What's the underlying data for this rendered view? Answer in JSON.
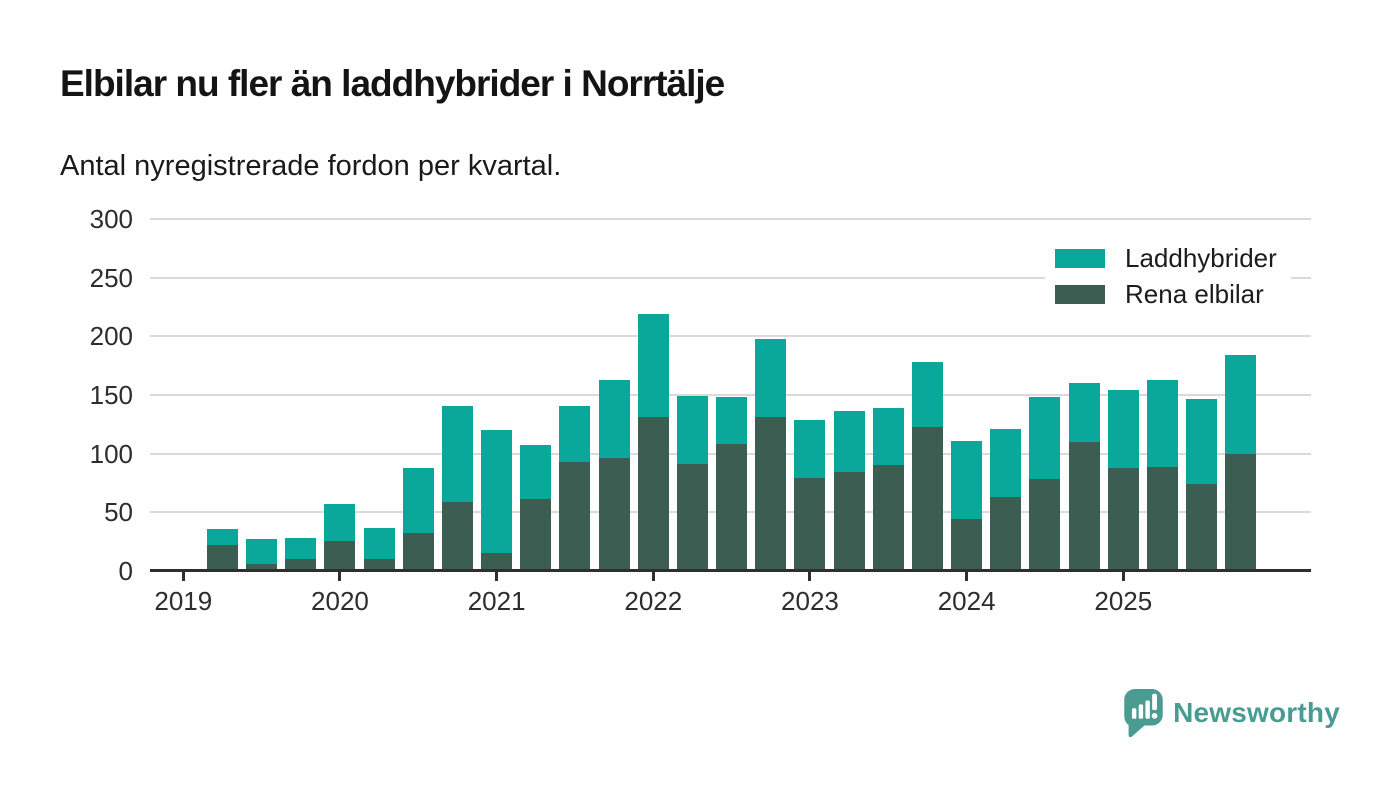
{
  "header": {
    "subtitle": "Antal nyregistrerade fordon per kvartal."
  },
  "chart_data": {
    "type": "bar",
    "stacked": true,
    "title": "Elbilar nu fler än laddhybrider i Norrtälje",
    "xlabel": "",
    "ylabel": "",
    "categories": [
      "2019Q2",
      "2019Q3",
      "2019Q4",
      "2020Q1",
      "2020Q2",
      "2020Q3",
      "2020Q4",
      "2021Q1",
      "2021Q2",
      "2021Q3",
      "2021Q4",
      "2022Q1",
      "2022Q2",
      "2022Q3",
      "2022Q4",
      "2023Q1",
      "2023Q2",
      "2023Q3",
      "2023Q4",
      "2024Q1",
      "2024Q2",
      "2024Q3",
      "2024Q4",
      "2025Q1",
      "2025Q2",
      "2025Q3",
      "2025Q4"
    ],
    "series": [
      {
        "name": "Laddhybrider",
        "color": "#0aa79b",
        "values": [
          14,
          21,
          18,
          31,
          27,
          56,
          82,
          105,
          46,
          48,
          67,
          88,
          58,
          40,
          67,
          50,
          52,
          49,
          55,
          67,
          58,
          70,
          50,
          66,
          74,
          73,
          84
        ]
      },
      {
        "name": "Rena elbilar",
        "color": "#3c5d51",
        "values": [
          22,
          6,
          10,
          26,
          10,
          32,
          59,
          15,
          61,
          93,
          96,
          131,
          91,
          108,
          131,
          79,
          84,
          90,
          123,
          44,
          63,
          78,
          110,
          88,
          89,
          74,
          100
        ]
      }
    ],
    "stack_order_bottom_to_top": [
      "Rena elbilar",
      "Laddhybrider"
    ],
    "ylim": [
      0,
      300
    ],
    "yticks": [
      0,
      50,
      100,
      150,
      200,
      250,
      300
    ],
    "xticks": [
      "2019",
      "2020",
      "2021",
      "2022",
      "2023",
      "2024",
      "2025"
    ],
    "grid": true,
    "legend_position": "top-right"
  },
  "branding": {
    "name": "Newsworthy",
    "color": "#4a9b91"
  }
}
